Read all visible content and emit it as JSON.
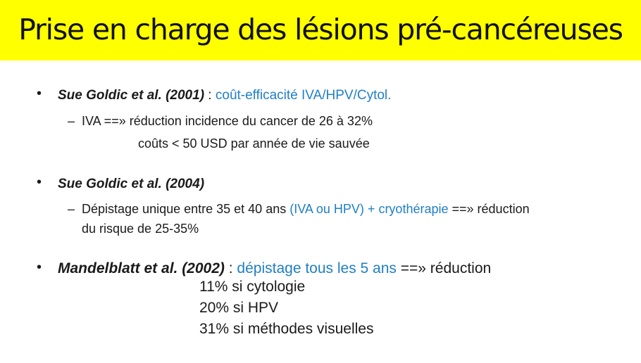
{
  "title": "Prise en charge des lésions pré-cancéreuses",
  "bullets": [
    {
      "ref": "Sue Goldic et al. (2001)",
      "sep": " : ",
      "topic": "coût-efficacité IVA/HPV/Cytol.",
      "sub": {
        "dash": "–",
        "line1": "IVA ==»  réduction incidence du cancer de 26 à 32%",
        "line2": "coûts < 50 USD par année de vie sauvée"
      }
    },
    {
      "ref": "Sue Goldic et al. (2004)",
      "sub": {
        "dash": "–",
        "pre": "Dépistage unique entre 35 et 40 ans ",
        "highlight": "(IVA ou HPV) + cryothérapie",
        "post": " ==» réduction",
        "line2": "du risque de 25-35%"
      }
    },
    {
      "ref": "Mandelblatt et al. (2002)",
      "sep": " : ",
      "topic": "dépistage tous les 5 ans",
      "post": " ==» réduction",
      "results": [
        "11% si cytologie",
        "20% si HPV",
        "31% si méthodes visuelles"
      ]
    }
  ],
  "bullet_symbol": "•"
}
